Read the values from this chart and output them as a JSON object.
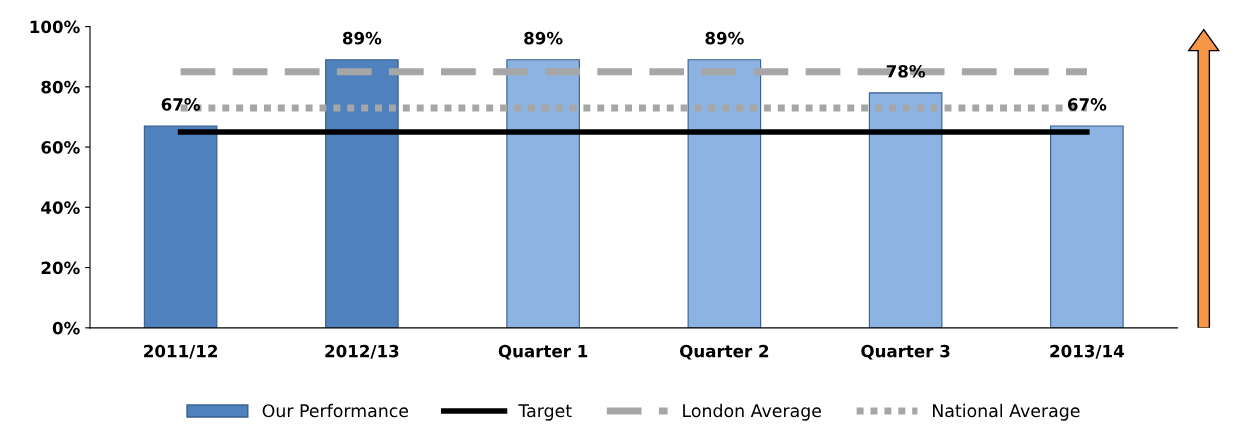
{
  "chart_data": {
    "type": "bar",
    "categories": [
      "2011/12",
      "2012/13",
      "Quarter 1",
      "Quarter 2",
      "Quarter 3",
      "2013/14"
    ],
    "series": [
      {
        "name": "Our Performance",
        "color": "#4f81bd",
        "colors": [
          "#4f81bd",
          "#4f81bd",
          "#8db3e2",
          "#8db3e2",
          "#8db3e2",
          "#8db3e2"
        ],
        "values": [
          67,
          89,
          89,
          89,
          78,
          67
        ],
        "value_labels": [
          "67%",
          "89%",
          "89%",
          "89%",
          "78%",
          "67%"
        ]
      },
      {
        "name": "Target",
        "type": "line",
        "color": "#000000",
        "line_style": "solid",
        "values": [
          65,
          65,
          65,
          65,
          65,
          65
        ]
      },
      {
        "name": "London Average",
        "type": "line",
        "color": "#a6a6a6",
        "line_style": "dashed",
        "values": [
          85,
          85,
          85,
          85,
          85,
          85
        ]
      },
      {
        "name": "National Average",
        "type": "line",
        "color": "#a6a6a6",
        "line_style": "dotted",
        "values": [
          73,
          73,
          73,
          73,
          73,
          73
        ]
      }
    ],
    "ylim": [
      0,
      100
    ],
    "yticks": [
      {
        "value": 0,
        "label": "0%"
      },
      {
        "value": 20,
        "label": "20%"
      },
      {
        "value": 40,
        "label": "40%"
      },
      {
        "value": 60,
        "label": "60%"
      },
      {
        "value": 80,
        "label": "80%"
      },
      {
        "value": 100,
        "label": "100%"
      }
    ],
    "grid": false,
    "legend": "bottom"
  }
}
